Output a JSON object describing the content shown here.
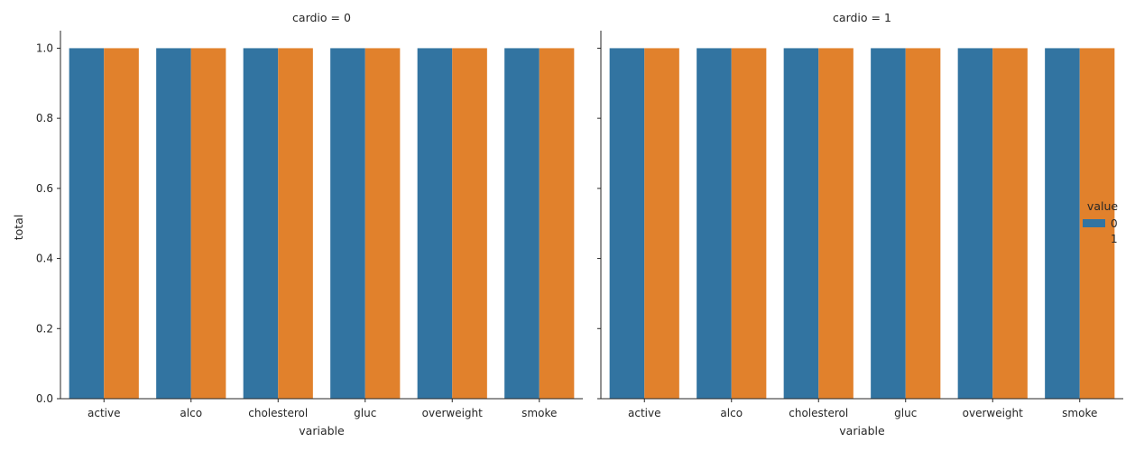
{
  "chart_data": {
    "type": "bar",
    "facet_variable": "cardio",
    "facet_titles": [
      "cardio = 0",
      "cardio = 1"
    ],
    "xlabel": "variable",
    "ylabel": "total",
    "ylim": [
      0,
      1.05
    ],
    "yticks": [
      "0.0",
      "0.2",
      "0.4",
      "0.6",
      "0.8",
      "1.0"
    ],
    "categories": [
      "active",
      "alco",
      "cholesterol",
      "gluc",
      "overweight",
      "smoke"
    ],
    "legend": {
      "title": "value",
      "position": "center-right"
    },
    "colors": {
      "0": "#3274a1",
      "1": "#e1812c"
    },
    "facets": [
      {
        "title": "cardio = 0",
        "series": [
          {
            "name": "0",
            "values": [
              1,
              1,
              1,
              1,
              1,
              1
            ]
          },
          {
            "name": "1",
            "values": [
              1,
              1,
              1,
              1,
              1,
              1
            ]
          }
        ]
      },
      {
        "title": "cardio = 1",
        "series": [
          {
            "name": "0",
            "values": [
              1,
              1,
              1,
              1,
              1,
              1
            ]
          },
          {
            "name": "1",
            "values": [
              1,
              1,
              1,
              1,
              1,
              1
            ]
          }
        ]
      }
    ]
  }
}
